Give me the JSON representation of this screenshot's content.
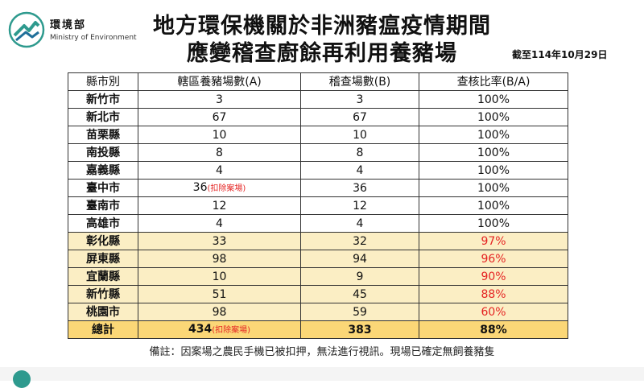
{
  "header": {
    "logo_zh": "環境部",
    "logo_en": "Ministry of Environment",
    "title_line1": "地方環保機關於非洲豬瘟疫情期間",
    "title_line2": "應變稽查廚餘再利用養豬場",
    "as_of": "截至114年10月29日"
  },
  "table": {
    "columns": [
      "縣市別",
      "轄區養豬場數(A)",
      "稽查場數(B)",
      "查核比率(B/A)"
    ],
    "rows": [
      {
        "county": "新竹市",
        "farms": "3",
        "note": "",
        "inspected": "3",
        "ratio": "100%"
      },
      {
        "county": "新北市",
        "farms": "67",
        "note": "",
        "inspected": "67",
        "ratio": "100%"
      },
      {
        "county": "苗栗縣",
        "farms": "10",
        "note": "",
        "inspected": "10",
        "ratio": "100%"
      },
      {
        "county": "南投縣",
        "farms": "8",
        "note": "",
        "inspected": "8",
        "ratio": "100%"
      },
      {
        "county": "嘉義縣",
        "farms": "4",
        "note": "",
        "inspected": "4",
        "ratio": "100%"
      },
      {
        "county": "臺中市",
        "farms": "36",
        "note": "(扣除案場)",
        "inspected": "36",
        "ratio": "100%"
      },
      {
        "county": "臺南市",
        "farms": "12",
        "note": "",
        "inspected": "12",
        "ratio": "100%"
      },
      {
        "county": "高雄市",
        "farms": "4",
        "note": "",
        "inspected": "4",
        "ratio": "100%"
      },
      {
        "county": "彰化縣",
        "farms": "33",
        "note": "",
        "inspected": "32",
        "ratio": "97%"
      },
      {
        "county": "屏東縣",
        "farms": "98",
        "note": "",
        "inspected": "94",
        "ratio": "96%"
      },
      {
        "county": "宜蘭縣",
        "farms": "10",
        "note": "",
        "inspected": "9",
        "ratio": "90%"
      },
      {
        "county": "新竹縣",
        "farms": "51",
        "note": "",
        "inspected": "45",
        "ratio": "88%"
      },
      {
        "county": "桃園市",
        "farms": "98",
        "note": "",
        "inspected": "59",
        "ratio": "60%"
      }
    ],
    "total": {
      "label": "總計",
      "farms": "434",
      "note": "(扣除案場)",
      "inspected": "383",
      "ratio": "88%"
    }
  },
  "remark": "備註：因案場之農民手機已被扣押，無法進行視訊。現場已確定無飼養豬隻",
  "colors": {
    "highlight_row": "#fbeec4",
    "total_row": "#fbd777",
    "alert_text": "#e52524",
    "logo_teal": "#2e9a8e"
  },
  "icons": {
    "logo": "ministry-of-environment-logo"
  }
}
